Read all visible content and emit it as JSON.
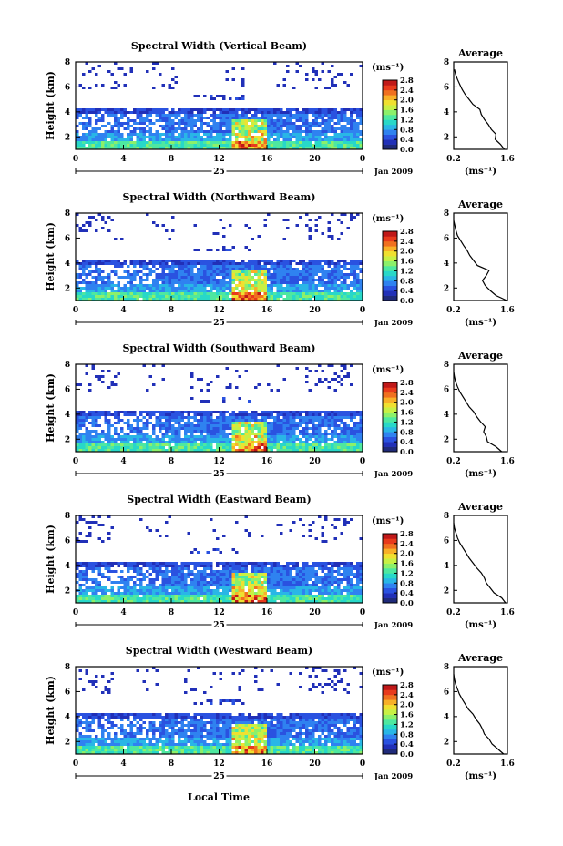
{
  "chart_data": {
    "type": "heatmap",
    "x_axis_label": "Local Time",
    "date_label": "25",
    "month_label": "Jan 2009",
    "x_ticks": [
      "0",
      "4",
      "8",
      "12",
      "16",
      "20",
      "0"
    ],
    "y_label": "Height (km)",
    "y_ticks": [
      "2",
      "4",
      "6",
      "8"
    ],
    "height_range_km": [
      1.0,
      8.0
    ],
    "time_range_h": [
      0,
      24
    ],
    "colorbar": {
      "unit_label": "(ms⁻¹)",
      "range": [
        0.0,
        2.8
      ],
      "tick_labels": [
        "2.8",
        "2.4",
        "2.0",
        "1.6",
        "1.2",
        "0.8",
        "0.4",
        "0.0"
      ],
      "colors": [
        "#1f2a7a",
        "#2130b8",
        "#2a52e0",
        "#2f82f0",
        "#29b6e6",
        "#28d8c8",
        "#4ee8a0",
        "#8cf06a",
        "#c8f044",
        "#f0e030",
        "#f8b028",
        "#f07020",
        "#e83a1c",
        "#c01818"
      ]
    },
    "avg_panel": {
      "title": "Average",
      "x_ticks": [
        "0.2",
        "1.6"
      ],
      "x_range": [
        0.2,
        1.6
      ],
      "x_unit_label": "(ms⁻¹)",
      "y_ticks": [
        "2",
        "4",
        "6",
        "8"
      ]
    },
    "panels": [
      {
        "title": "Spectral Width (Vertical Beam)",
        "profile": {
          "height_km": [
            1.0,
            1.4,
            1.8,
            2.2,
            2.6,
            3.0,
            3.4,
            3.8,
            4.2,
            4.6,
            5.0,
            5.4,
            5.8,
            6.2,
            6.6,
            7.0,
            7.4
          ],
          "width_ms": [
            1.52,
            1.42,
            1.28,
            1.3,
            1.18,
            1.1,
            1.0,
            0.92,
            0.88,
            0.7,
            0.6,
            0.5,
            0.42,
            0.36,
            0.3,
            0.25,
            0.22
          ]
        }
      },
      {
        "title": "Spectral Width (Northward Beam)",
        "profile": {
          "height_km": [
            1.0,
            1.4,
            1.8,
            2.2,
            2.6,
            3.0,
            3.4,
            3.8,
            4.2,
            4.6,
            5.0,
            5.4,
            5.8,
            6.2,
            6.6,
            7.0,
            7.4
          ],
          "width_ms": [
            1.58,
            1.3,
            1.15,
            1.02,
            0.95,
            1.05,
            1.12,
            0.82,
            0.72,
            0.62,
            0.55,
            0.46,
            0.38,
            0.3,
            0.26,
            0.23,
            0.2
          ]
        }
      },
      {
        "title": "Spectral Width (Southward Beam)",
        "profile": {
          "height_km": [
            1.0,
            1.4,
            1.8,
            2.2,
            2.6,
            3.0,
            3.4,
            3.8,
            4.2,
            4.6,
            5.0,
            5.4,
            5.8,
            6.2,
            6.6,
            7.0,
            7.4
          ],
          "width_ms": [
            1.45,
            1.3,
            1.08,
            1.05,
            0.98,
            1.02,
            0.9,
            0.8,
            0.72,
            0.6,
            0.52,
            0.44,
            0.36,
            0.3,
            0.25,
            0.22,
            0.2
          ]
        }
      },
      {
        "title": "Spectral Width (Eastward Beam)",
        "profile": {
          "height_km": [
            1.0,
            1.4,
            1.8,
            2.2,
            2.6,
            3.0,
            3.4,
            3.8,
            4.2,
            4.6,
            5.0,
            5.4,
            5.8,
            6.2,
            6.6,
            7.0,
            7.4
          ],
          "width_ms": [
            1.55,
            1.45,
            1.25,
            1.15,
            1.05,
            1.0,
            0.92,
            0.8,
            0.7,
            0.6,
            0.52,
            0.44,
            0.36,
            0.3,
            0.26,
            0.22,
            0.2
          ]
        }
      },
      {
        "title": "Spectral Width (Westward Beam)",
        "profile": {
          "height_km": [
            1.0,
            1.4,
            1.8,
            2.2,
            2.6,
            3.0,
            3.4,
            3.8,
            4.2,
            4.6,
            5.0,
            5.4,
            5.8,
            6.2,
            6.6,
            7.0,
            7.4
          ],
          "width_ms": [
            1.5,
            1.35,
            1.2,
            1.12,
            1.0,
            0.95,
            0.88,
            0.78,
            0.7,
            0.58,
            0.5,
            0.42,
            0.35,
            0.3,
            0.25,
            0.22,
            0.2
          ]
        }
      }
    ]
  }
}
